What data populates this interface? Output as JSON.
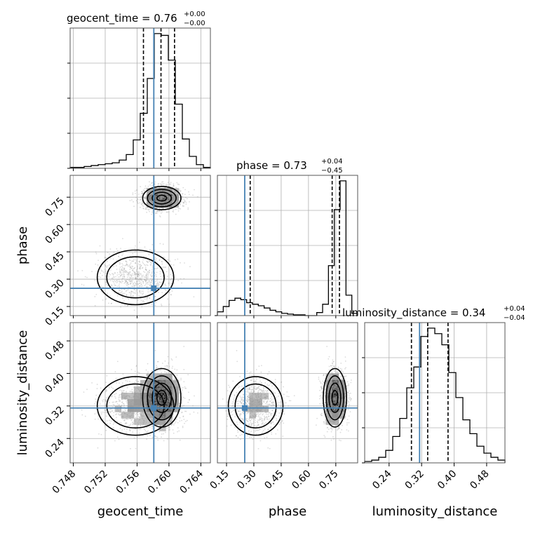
{
  "colors": {
    "truth": "#4682b4",
    "hist": "#000000",
    "quantile": "#000000",
    "scatter": "#9a9a9a",
    "grid": "#b0b0b0"
  },
  "titles": {
    "geocent_time": {
      "name": "geocent_time = 0.76",
      "sup": "+0.00",
      "sub": "−0.00"
    },
    "phase": {
      "name": "phase = 0.73",
      "sup": "+0.04",
      "sub": "−0.45"
    },
    "luminosity_distance": {
      "name": "luminosity_distance = 0.34",
      "sup": "+0.04",
      "sub": "−0.04"
    }
  },
  "axis_labels": {
    "x": [
      "geocent_time",
      "phase",
      "luminosity_distance"
    ],
    "y": [
      "phase",
      "luminosity_distance"
    ]
  },
  "chart_data": {
    "type": "corner",
    "parameters": [
      "geocent_time",
      "phase",
      "luminosity_distance"
    ],
    "ranges": {
      "geocent_time": [
        0.7476,
        0.7652
      ],
      "phase": [
        0.1,
        0.87
      ],
      "luminosity_distance": [
        0.18,
        0.525
      ]
    },
    "ticks": {
      "geocent_time": [
        0.748,
        0.752,
        0.756,
        0.76,
        0.764
      ],
      "phase": [
        0.15,
        0.3,
        0.45,
        0.6,
        0.75
      ],
      "luminosity_distance": [
        0.24,
        0.32,
        0.4,
        0.48
      ]
    },
    "tick_labels": {
      "geocent_time": [
        "0.748",
        "0.752",
        "0.756",
        "0.760",
        "0.764"
      ],
      "phase": [
        "0.15",
        "0.30",
        "0.45",
        "0.60",
        "0.75"
      ],
      "luminosity_distance": [
        "0.24",
        "0.32",
        "0.40",
        "0.48"
      ]
    },
    "truths": {
      "geocent_time": 0.7581,
      "phase": 0.25,
      "luminosity_distance": 0.315
    },
    "quantiles": {
      "geocent_time": [
        0.7568,
        0.759,
        0.7607
      ],
      "phase": [
        0.28,
        0.73,
        0.77
      ],
      "luminosity_distance": [
        0.295,
        0.335,
        0.385
      ]
    },
    "histograms": {
      "geocent_time": [
        1,
        1,
        2,
        3,
        4,
        5,
        6,
        9,
        15,
        31,
        60,
        98,
        147,
        145,
        118,
        70,
        32,
        13,
        4,
        1
      ],
      "phase": [
        5,
        12,
        20,
        23,
        21,
        17,
        15,
        13,
        10,
        7,
        5,
        3,
        2,
        1,
        1,
        0,
        0,
        4,
        15,
        66,
        140,
        178,
        27,
        3
      ],
      "luminosity_distance": [
        1,
        2,
        4,
        9,
        19,
        32,
        54,
        69,
        91,
        97,
        93,
        85,
        65,
        47,
        31,
        21,
        12,
        7,
        4,
        2
      ]
    },
    "modes": [
      {
        "weight": 0.62,
        "mean": [
          0.7591,
          0.745,
          0.34
        ],
        "sd": [
          0.0012,
          0.032,
          0.036
        ]
      },
      {
        "weight": 0.38,
        "mean": [
          0.7558,
          0.31,
          0.32
        ],
        "sd": [
          0.0024,
          0.075,
          0.036
        ]
      }
    ]
  }
}
